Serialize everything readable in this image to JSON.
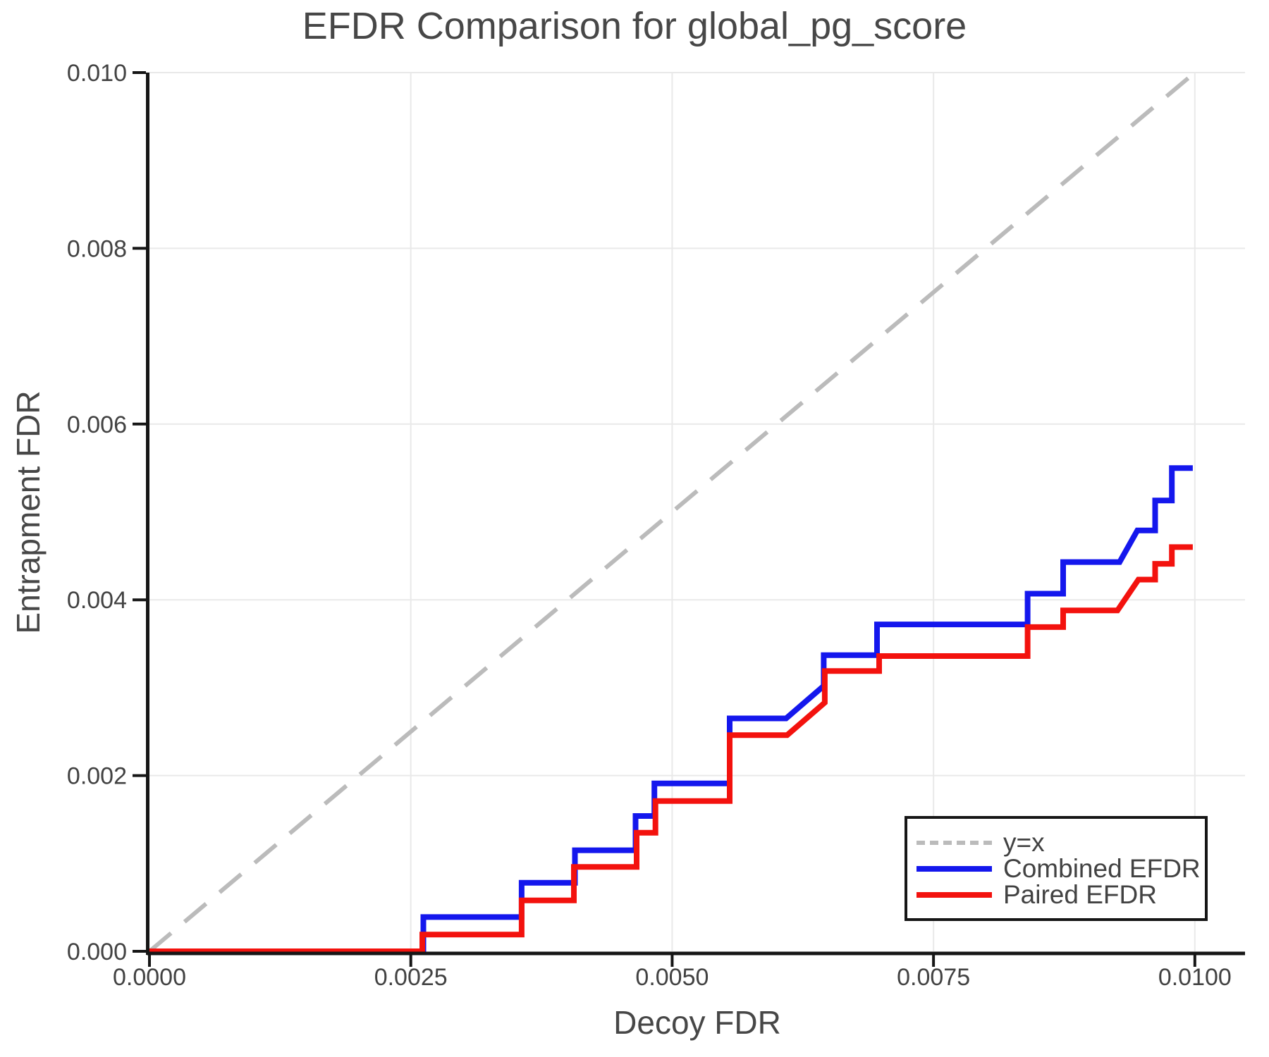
{
  "title": "EFDR Comparison for global_pg_score",
  "axes": {
    "x_label": "Decoy FDR",
    "y_label": "Entrapment FDR",
    "x_ticks": [
      {
        "value": 0.0,
        "label": "0.0000"
      },
      {
        "value": 0.0025,
        "label": "0.0025"
      },
      {
        "value": 0.005,
        "label": "0.0050"
      },
      {
        "value": 0.0075,
        "label": "0.0075"
      },
      {
        "value": 0.01,
        "label": "0.0100"
      }
    ],
    "y_ticks": [
      {
        "value": 0.0,
        "label": "0.000"
      },
      {
        "value": 0.002,
        "label": "0.002"
      },
      {
        "value": 0.004,
        "label": "0.004"
      },
      {
        "value": 0.006,
        "label": "0.006"
      },
      {
        "value": 0.008,
        "label": "0.008"
      },
      {
        "value": 0.01,
        "label": "0.010"
      }
    ]
  },
  "legend": {
    "entries": [
      {
        "label": "y=x",
        "style": "dashed",
        "color": "#bbbbbb"
      },
      {
        "label": "Combined EFDR",
        "style": "solid",
        "color": "#1417ed"
      },
      {
        "label": "Paired EFDR",
        "style": "solid",
        "color": "#f3120e"
      }
    ]
  },
  "colors": {
    "grid": "#e9e9e9",
    "spine": "#161616",
    "tick_text": "#424242",
    "title_text": "#474747",
    "reference": "#bbbbbb",
    "combined": "#1417ed",
    "paired": "#f3120e"
  },
  "chart_data": {
    "type": "line",
    "title": "EFDR Comparison for global_pg_score",
    "xlabel": "Decoy FDR",
    "ylabel": "Entrapment FDR",
    "xlim": [
      0,
      0.01048
    ],
    "ylim": [
      0,
      0.01
    ],
    "grid": true,
    "legend_position": "lower right",
    "series": [
      {
        "name": "y=x",
        "style": "dashed",
        "color": "#bbbbbb",
        "width": 6,
        "points": [
          [
            0,
            0
          ],
          [
            0.01,
            0.01
          ]
        ]
      },
      {
        "name": "Combined EFDR",
        "style": "solid",
        "color": "#1417ed",
        "width": 8,
        "points": [
          [
            0.0,
            0.0
          ],
          [
            0.00262,
            0.0
          ],
          [
            0.00262,
            0.00039
          ],
          [
            0.00356,
            0.00039
          ],
          [
            0.00356,
            0.00078
          ],
          [
            0.00407,
            0.00078
          ],
          [
            0.00407,
            0.00115
          ],
          [
            0.00465,
            0.00115
          ],
          [
            0.00465,
            0.00154
          ],
          [
            0.00483,
            0.00154
          ],
          [
            0.00483,
            0.00191
          ],
          [
            0.00555,
            0.00191
          ],
          [
            0.00555,
            0.00265
          ],
          [
            0.00609,
            0.00265
          ],
          [
            0.00645,
            0.00302
          ],
          [
            0.00645,
            0.00337
          ],
          [
            0.00696,
            0.00337
          ],
          [
            0.00696,
            0.00372
          ],
          [
            0.0084,
            0.00372
          ],
          [
            0.0084,
            0.00407
          ],
          [
            0.00874,
            0.00407
          ],
          [
            0.00874,
            0.00443
          ],
          [
            0.00928,
            0.00443
          ],
          [
            0.00945,
            0.00479
          ],
          [
            0.00962,
            0.00479
          ],
          [
            0.00962,
            0.00513
          ],
          [
            0.00978,
            0.00513
          ],
          [
            0.00978,
            0.0055
          ],
          [
            0.00998,
            0.0055
          ]
        ]
      },
      {
        "name": "Paired EFDR",
        "style": "solid",
        "color": "#f3120e",
        "width": 8,
        "points": [
          [
            0.0,
            0.0
          ],
          [
            0.00261,
            0.0
          ],
          [
            0.00261,
            0.00019
          ],
          [
            0.00356,
            0.00019
          ],
          [
            0.00356,
            0.00058
          ],
          [
            0.00406,
            0.00058
          ],
          [
            0.00406,
            0.00096
          ],
          [
            0.00466,
            0.00096
          ],
          [
            0.00466,
            0.00135
          ],
          [
            0.00484,
            0.00135
          ],
          [
            0.00484,
            0.00171
          ],
          [
            0.00555,
            0.00171
          ],
          [
            0.00555,
            0.00246
          ],
          [
            0.0061,
            0.00246
          ],
          [
            0.00646,
            0.00283
          ],
          [
            0.00646,
            0.00319
          ],
          [
            0.00698,
            0.00319
          ],
          [
            0.00698,
            0.00336
          ],
          [
            0.0084,
            0.00336
          ],
          [
            0.0084,
            0.00369
          ],
          [
            0.00874,
            0.00369
          ],
          [
            0.00874,
            0.00388
          ],
          [
            0.00926,
            0.00388
          ],
          [
            0.00946,
            0.00423
          ],
          [
            0.00962,
            0.00423
          ],
          [
            0.00962,
            0.00441
          ],
          [
            0.00978,
            0.00441
          ],
          [
            0.00978,
            0.0046
          ],
          [
            0.00998,
            0.0046
          ]
        ]
      }
    ]
  }
}
